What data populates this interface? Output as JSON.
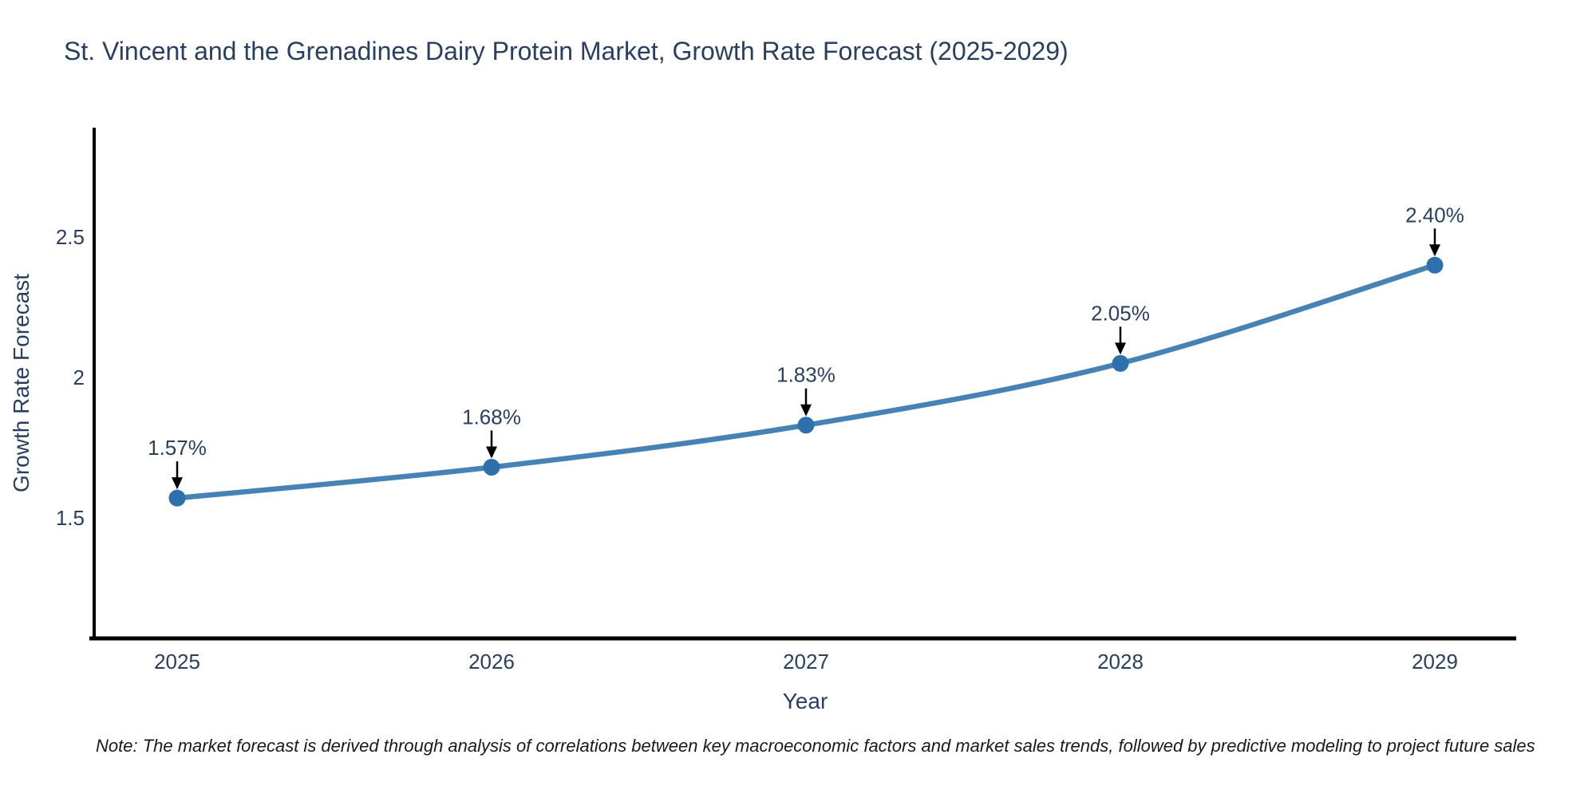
{
  "chart_data": {
    "type": "line",
    "title": "St. Vincent and the Grenadines Dairy Protein Market, Growth Rate Forecast (2025-2029)",
    "xlabel": "Year",
    "ylabel": "Growth Rate Forecast",
    "categories": [
      "2025",
      "2026",
      "2027",
      "2028",
      "2029"
    ],
    "values": [
      1.57,
      1.68,
      1.83,
      2.05,
      2.4
    ],
    "point_labels": [
      "1.57%",
      "1.68%",
      "1.83%",
      "2.05%",
      "2.40%"
    ],
    "y_ticks": [
      1.5,
      2,
      2.5
    ],
    "y_tick_labels": [
      "1.5",
      "2",
      "2.5"
    ],
    "ylim": [
      1.07,
      2.89
    ],
    "grid": false,
    "legend": "none",
    "line_color": "#4682b4",
    "marker_color": "#2e70ad",
    "axis_color": "#000000",
    "text_color": "#2a3f5f",
    "annotation_arrow_color": "#000000"
  },
  "note": "Note: The market forecast is derived through analysis of correlations between key macroeconomic factors and market sales trends, followed by predictive modeling to project future sales"
}
